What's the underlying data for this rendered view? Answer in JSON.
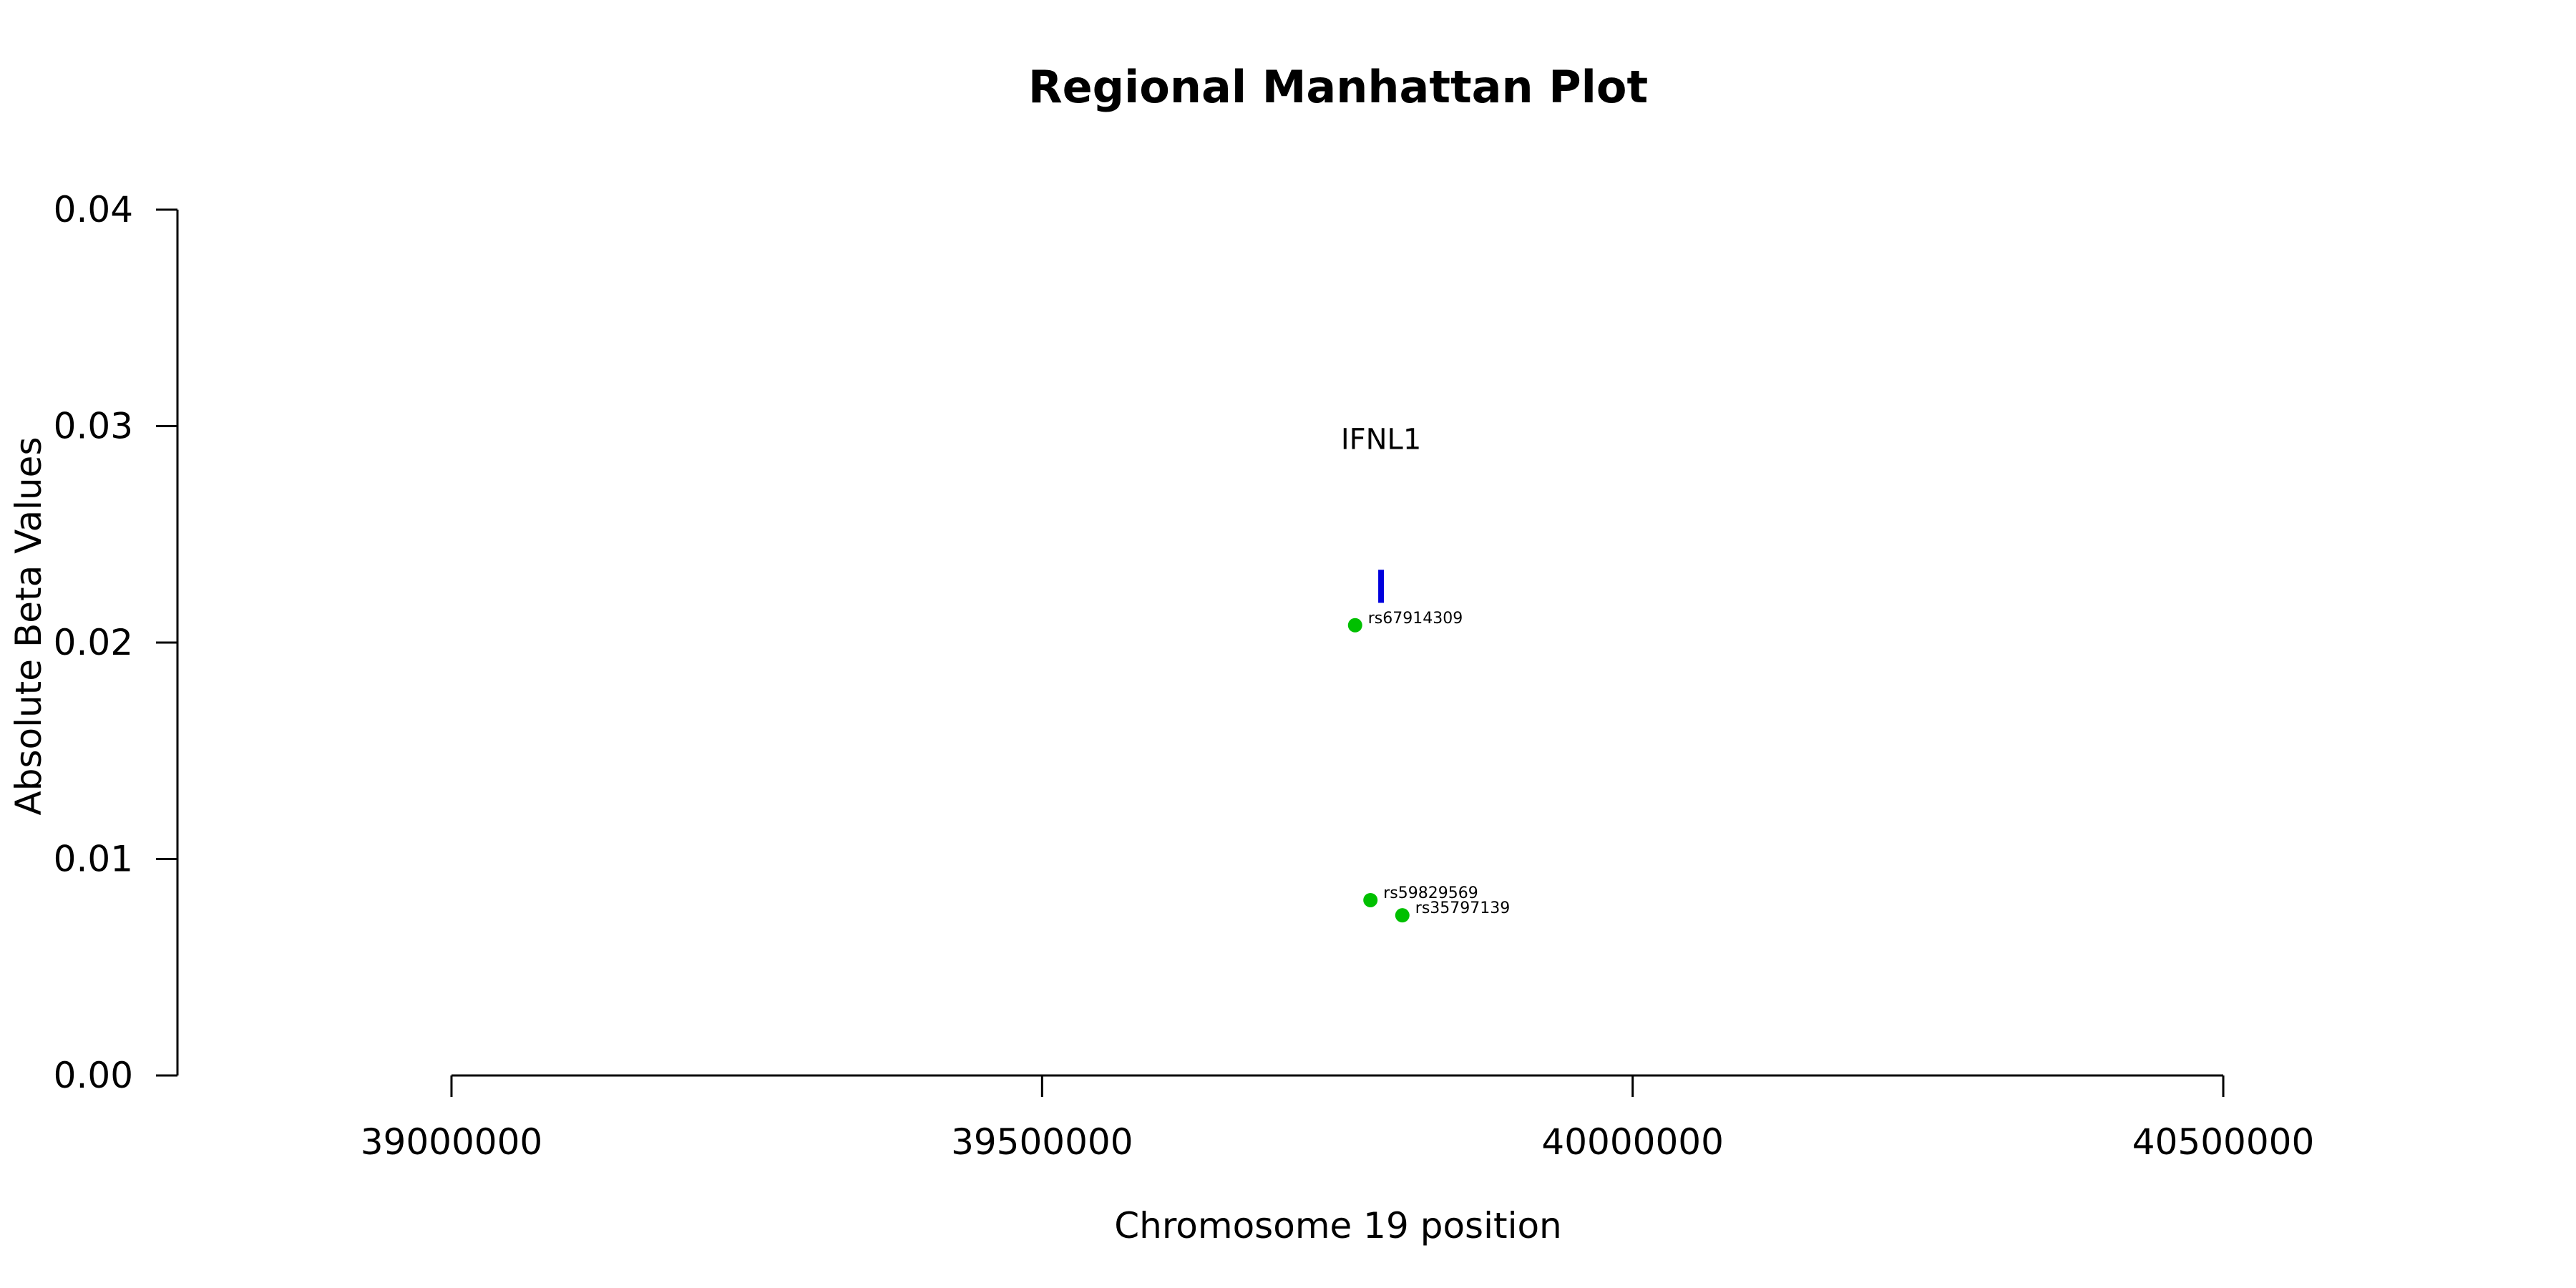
{
  "chart_data": {
    "type": "scatter",
    "title": "Regional Manhattan Plot",
    "xlabel": "Chromosome 19 position",
    "ylabel": "Absolute Beta Values",
    "xlim": [
      38768000,
      40732000
    ],
    "ylim": [
      0,
      0.04
    ],
    "x_ticks": [
      39000000,
      39500000,
      40000000,
      40500000
    ],
    "x_tick_labels": [
      "39000000",
      "39500000",
      "40000000",
      "40500000"
    ],
    "y_ticks": [
      0,
      0.01,
      0.02,
      0.03,
      0.04
    ],
    "y_tick_labels": [
      "0.00",
      "0.01",
      "0.02",
      "0.03",
      "0.04"
    ],
    "grid": false,
    "points": [
      {
        "label": "rs67914309",
        "x": 39765000,
        "y": 0.0208
      },
      {
        "label": "rs59829569",
        "x": 39778000,
        "y": 0.0081
      },
      {
        "label": "rs35797139",
        "x": 39805000,
        "y": 0.0074
      }
    ],
    "gene": {
      "name": "IFNL1",
      "start": 39786000,
      "end": 39788000,
      "y_label": 0.0294,
      "y_bar_low": 0.0221,
      "y_bar_high": 0.0231
    },
    "colors": {
      "points": "#00c000",
      "gene": "#0000dd",
      "axis": "#000000"
    }
  }
}
